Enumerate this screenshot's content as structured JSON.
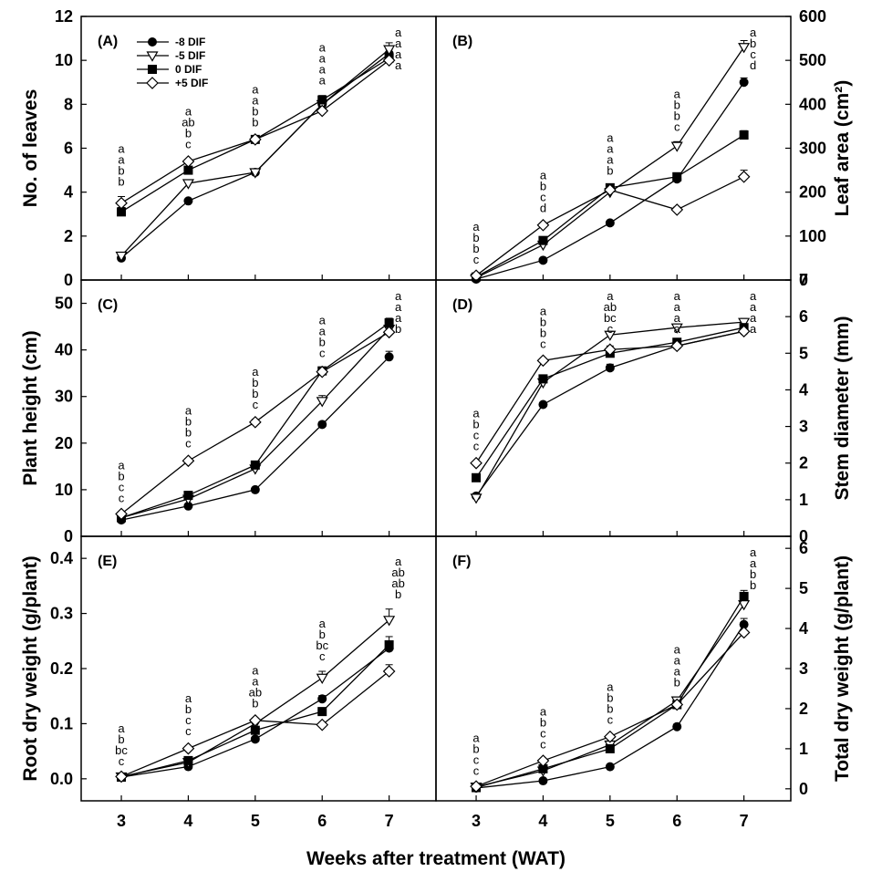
{
  "xlabel": "Weeks after treatment (WAT)",
  "legend_placement": "top-left of panel (A)",
  "legend": [
    {
      "name": "-8 DIF",
      "marker": "circle-filled"
    },
    {
      "name": "-5 DIF",
      "marker": "triangle-down-open"
    },
    {
      "name": "0 DIF",
      "marker": "square-filled"
    },
    {
      "name": "+5 DIF",
      "marker": "diamond-open"
    }
  ],
  "chart_data": [
    {
      "type": "line",
      "panel": "(A)",
      "ylabel": "No. of leaves",
      "axis_side": "left",
      "x": [
        3,
        4,
        5,
        6,
        7
      ],
      "xlim": [
        2.4,
        7.7
      ],
      "ylim": [
        0,
        12
      ],
      "yticks": [
        0,
        2,
        4,
        6,
        8,
        10,
        12
      ],
      "series": [
        {
          "name": "-8 DIF",
          "values": [
            1.0,
            3.6,
            4.9,
            8.0,
            10.3
          ],
          "errors": [
            0.1,
            0.1,
            0.1,
            0.2,
            0.2
          ]
        },
        {
          "name": "-5 DIF",
          "values": [
            1.1,
            4.4,
            4.9,
            8.0,
            10.5
          ],
          "errors": [
            0.1,
            0.1,
            0.1,
            0.2,
            0.3
          ]
        },
        {
          "name": "0 DIF",
          "values": [
            3.1,
            5.0,
            6.4,
            8.2,
            10.1
          ],
          "errors": [
            0.2,
            0.1,
            0.1,
            0.2,
            0.2
          ]
        },
        {
          "name": "+5 DIF",
          "values": [
            3.5,
            5.4,
            6.4,
            7.7,
            10.0
          ],
          "errors": [
            0.3,
            0.1,
            0.1,
            0.1,
            0.2
          ]
        }
      ],
      "letters": [
        [
          "a",
          "a",
          "b",
          "b"
        ],
        [
          "a",
          "ab",
          "b",
          "c"
        ],
        [
          "a",
          "a",
          "b",
          "b"
        ],
        [
          "a",
          "a",
          "a",
          "a"
        ],
        [
          "a",
          "a",
          "a",
          "a"
        ]
      ]
    },
    {
      "type": "line",
      "panel": "(B)",
      "ylabel": "Leaf area (cm²)",
      "axis_side": "right",
      "x": [
        3,
        4,
        5,
        6,
        7
      ],
      "xlim": [
        2.4,
        7.7
      ],
      "ylim": [
        0,
        600
      ],
      "yticks": [
        0,
        100,
        200,
        300,
        400,
        500,
        600
      ],
      "series": [
        {
          "name": "-8 DIF",
          "values": [
            2,
            45,
            130,
            230,
            450
          ],
          "errors": [
            1,
            3,
            4,
            8,
            10
          ]
        },
        {
          "name": "-5 DIF",
          "values": [
            5,
            80,
            200,
            305,
            530
          ],
          "errors": [
            2,
            4,
            5,
            10,
            15
          ]
        },
        {
          "name": "0 DIF",
          "values": [
            7,
            90,
            210,
            235,
            330
          ],
          "errors": [
            2,
            4,
            5,
            8,
            10
          ]
        },
        {
          "name": "+5 DIF",
          "values": [
            10,
            125,
            205,
            160,
            235
          ],
          "errors": [
            2,
            5,
            5,
            6,
            15
          ]
        }
      ],
      "letters": [
        [
          "a",
          "b",
          "b",
          "c"
        ],
        [
          "a",
          "b",
          "c",
          "d"
        ],
        [
          "a",
          "a",
          "a",
          "b"
        ],
        [
          "a",
          "b",
          "b",
          "c"
        ],
        [
          "a",
          "b",
          "c",
          "d"
        ]
      ]
    },
    {
      "type": "line",
      "panel": "(C)",
      "ylabel": "Plant height (cm)",
      "axis_side": "left",
      "x": [
        3,
        4,
        5,
        6,
        7
      ],
      "xlim": [
        2.4,
        7.7
      ],
      "ylim": [
        0,
        55
      ],
      "yticks": [
        0,
        10,
        20,
        30,
        40,
        50
      ],
      "series": [
        {
          "name": "-8 DIF",
          "values": [
            3.5,
            6.5,
            10.0,
            24.0,
            38.5
          ],
          "errors": [
            0.2,
            0.3,
            0.4,
            0.6,
            1.2
          ]
        },
        {
          "name": "-5 DIF",
          "values": [
            4.0,
            8.0,
            14.5,
            29.0,
            44.5
          ],
          "errors": [
            0.2,
            0.3,
            0.5,
            1.2,
            1.0
          ]
        },
        {
          "name": "0 DIF",
          "values": [
            4.0,
            8.8,
            15.3,
            35.5,
            45.8
          ],
          "errors": [
            0.2,
            0.3,
            0.5,
            0.6,
            1.0
          ]
        },
        {
          "name": "+5 DIF",
          "values": [
            4.8,
            16.2,
            24.5,
            35.3,
            43.8
          ],
          "errors": [
            0.2,
            0.5,
            0.6,
            0.7,
            1.0
          ]
        }
      ],
      "letters": [
        [
          "a",
          "b",
          "c",
          "c"
        ],
        [
          "a",
          "b",
          "b",
          "c"
        ],
        [
          "a",
          "b",
          "b",
          "c"
        ],
        [
          "a",
          "a",
          "b",
          "c"
        ],
        [
          "a",
          "a",
          "a",
          "b"
        ]
      ]
    },
    {
      "type": "line",
      "panel": "(D)",
      "ylabel": "Stem diameter (mm)",
      "axis_side": "right",
      "x": [
        3,
        4,
        5,
        6,
        7
      ],
      "xlim": [
        2.4,
        7.7
      ],
      "ylim": [
        0,
        7
      ],
      "yticks": [
        0,
        1,
        2,
        3,
        4,
        5,
        6,
        7
      ],
      "series": [
        {
          "name": "-8 DIF",
          "values": [
            1.1,
            3.6,
            4.6,
            5.2,
            5.6
          ],
          "errors": [
            0.05,
            0.05,
            0.1,
            0.1,
            0.1
          ]
        },
        {
          "name": "-5 DIF",
          "values": [
            1.05,
            4.2,
            5.5,
            5.7,
            5.85
          ],
          "errors": [
            0.05,
            0.1,
            0.1,
            0.1,
            0.1
          ]
        },
        {
          "name": "0 DIF",
          "values": [
            1.6,
            4.3,
            5.0,
            5.3,
            5.7
          ],
          "errors": [
            0.05,
            0.05,
            0.1,
            0.1,
            0.1
          ]
        },
        {
          "name": "+5 DIF",
          "values": [
            2.0,
            4.8,
            5.1,
            5.2,
            5.6
          ],
          "errors": [
            0.05,
            0.05,
            0.1,
            0.1,
            0.1
          ]
        }
      ],
      "letters": [
        [
          "a",
          "b",
          "c",
          "c"
        ],
        [
          "a",
          "b",
          "b",
          "c"
        ],
        [
          "a",
          "ab",
          "bc",
          "c"
        ],
        [
          "a",
          "a",
          "a",
          "a"
        ],
        [
          "a",
          "a",
          "a",
          "a"
        ]
      ]
    },
    {
      "type": "line",
      "panel": "(E)",
      "ylabel": "Root dry weight (g/plant)",
      "axis_side": "left",
      "x": [
        3,
        4,
        5,
        6,
        7
      ],
      "xlim": [
        2.4,
        7.7
      ],
      "ylim": [
        -0.04,
        0.44
      ],
      "yticks": [
        0.0,
        0.1,
        0.2,
        0.3,
        0.4
      ],
      "series": [
        {
          "name": "-8 DIF",
          "values": [
            0.003,
            0.022,
            0.072,
            0.145,
            0.237
          ],
          "errors": [
            0.001,
            0.002,
            0.003,
            0.006,
            0.01
          ]
        },
        {
          "name": "-5 DIF",
          "values": [
            0.004,
            0.03,
            0.1,
            0.183,
            0.288
          ],
          "errors": [
            0.001,
            0.003,
            0.005,
            0.012,
            0.02
          ]
        },
        {
          "name": "0 DIF",
          "values": [
            0.003,
            0.033,
            0.088,
            0.122,
            0.243
          ],
          "errors": [
            0.001,
            0.003,
            0.004,
            0.006,
            0.015
          ]
        },
        {
          "name": "+5 DIF",
          "values": [
            0.004,
            0.055,
            0.106,
            0.098,
            0.195
          ],
          "errors": [
            0.001,
            0.004,
            0.004,
            0.004,
            0.012
          ]
        }
      ],
      "letters": [
        [
          "a",
          "b",
          "bc",
          "c"
        ],
        [
          "a",
          "b",
          "c",
          "c"
        ],
        [
          "a",
          "a",
          "ab",
          "b"
        ],
        [
          "a",
          "b",
          "bc",
          "c"
        ],
        [
          "a",
          "ab",
          "ab",
          "b"
        ]
      ]
    },
    {
      "type": "line",
      "panel": "(F)",
      "ylabel": "Total dry weight (g/plant)",
      "axis_side": "right",
      "x": [
        3,
        4,
        5,
        6,
        7
      ],
      "xlim": [
        2.4,
        7.7
      ],
      "ylim": [
        -0.3,
        6.3
      ],
      "yticks": [
        0,
        1,
        2,
        3,
        4,
        5,
        6
      ],
      "series": [
        {
          "name": "-8 DIF",
          "values": [
            0.02,
            0.2,
            0.55,
            1.55,
            4.1
          ],
          "errors": [
            0.01,
            0.02,
            0.03,
            0.06,
            0.15
          ]
        },
        {
          "name": "-5 DIF",
          "values": [
            0.05,
            0.45,
            1.1,
            2.2,
            4.6
          ],
          "errors": [
            0.01,
            0.03,
            0.05,
            0.08,
            0.15
          ]
        },
        {
          "name": "0 DIF",
          "values": [
            0.03,
            0.5,
            1.0,
            2.1,
            4.8
          ],
          "errors": [
            0.01,
            0.03,
            0.05,
            0.08,
            0.15
          ]
        },
        {
          "name": "+5 DIF",
          "values": [
            0.06,
            0.7,
            1.3,
            2.1,
            3.9
          ],
          "errors": [
            0.01,
            0.04,
            0.05,
            0.08,
            0.15
          ]
        }
      ],
      "letters": [
        [
          "a",
          "b",
          "c",
          "c"
        ],
        [
          "a",
          "b",
          "c",
          "c"
        ],
        [
          "a",
          "b",
          "b",
          "c"
        ],
        [
          "a",
          "a",
          "a",
          "b"
        ],
        [
          "a",
          "a",
          "b",
          "b"
        ]
      ]
    }
  ]
}
